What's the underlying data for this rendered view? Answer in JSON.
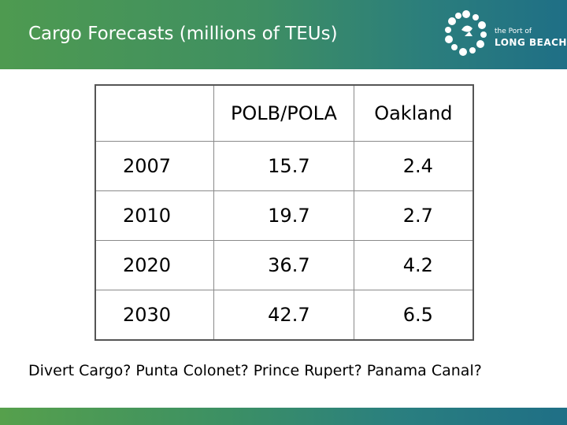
{
  "header": {
    "title": "Cargo Forecasts (millions of TEUs)",
    "logo": {
      "small_text": "the Port of",
      "big_text": "LONG BEACH"
    }
  },
  "table": {
    "columns": [
      "",
      "POLB/POLA",
      "Oakland"
    ],
    "rows": [
      {
        "year": "2007",
        "polb_pola": "15.7",
        "oakland": "2.4"
      },
      {
        "year": "2010",
        "polb_pola": "19.7",
        "oakland": "2.7"
      },
      {
        "year": "2020",
        "polb_pola": "36.7",
        "oakland": "4.2"
      },
      {
        "year": "2030",
        "polb_pola": "42.7",
        "oakland": "6.5"
      }
    ]
  },
  "note": "Divert Cargo? Punta Colonet? Prince Rupert? Panama Canal?",
  "colors": {
    "header_start": "#4e9a50",
    "header_end": "#1f6f86"
  }
}
